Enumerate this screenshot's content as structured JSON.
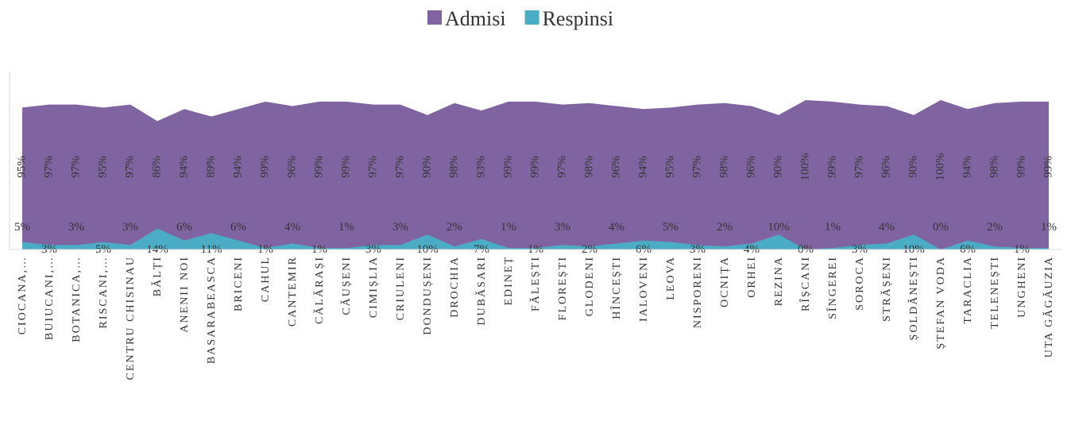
{
  "chart_data": {
    "type": "area",
    "categories": [
      "CIOCANA,…",
      "BUIUCANI,…",
      "BOTANICA,…",
      "RISCANI,…",
      "CENTRU CHISINAU",
      "BĂLȚI",
      "ANENII NOI",
      "BASARABEASCA",
      "BRICENI",
      "CAHUL",
      "CANTEMIR",
      "CĂLĂRAȘI",
      "CĂUȘENI",
      "CIMIȘLIA",
      "CRIULENI",
      "DONDUȘENI",
      "DROCHIA",
      "DUBĂSARI",
      "EDINEȚ",
      "FĂLEȘTI",
      "FLOREȘTI",
      "GLODENI",
      "HÎNCEȘTI",
      "IALOVENI",
      "LEOVA",
      "NISPORENI",
      "OCNIȚA",
      "ORHEI",
      "REZINA",
      "RÎȘCANI",
      "SÎNGEREI",
      "SOROCA",
      "STRĂȘENI",
      "ȘOLDĂNEȘTI",
      "ȘTEFAN VODA",
      "TARACLIA",
      "TELENEȘTI",
      "UNGHENI",
      "UTA GĂGĂUZIA"
    ],
    "series": [
      {
        "name": "Admisi",
        "color": "#8064a2",
        "values": [
          95,
          97,
          97,
          95,
          97,
          86,
          94,
          89,
          94,
          99,
          96,
          99,
          99,
          97,
          97,
          90,
          98,
          93,
          99,
          99,
          97,
          98,
          96,
          94,
          95,
          97,
          98,
          96,
          90,
          100,
          99,
          97,
          96,
          90,
          100,
          94,
          98,
          99,
          99
        ],
        "value_labels": [
          "95%",
          "97%",
          "97%",
          "95%",
          "97%",
          "86%",
          "94%",
          "89%",
          "94%",
          "99%",
          "96%",
          "99%",
          "99%",
          "97%",
          "97%",
          "90%",
          "98%",
          "93%",
          "99%",
          "99%",
          "97%",
          "98%",
          "96%",
          "94%",
          "95%",
          "97%",
          "98%",
          "96%",
          "90%",
          "100%",
          "99%",
          "97%",
          "96%",
          "90%",
          "100%",
          "94%",
          "98%",
          "99%",
          "99%"
        ]
      },
      {
        "name": "Respinsi",
        "color": "#4bacc6",
        "values": [
          5,
          3,
          3,
          5,
          3,
          14,
          6,
          11,
          6,
          1,
          4,
          1,
          1,
          3,
          3,
          10,
          2,
          7,
          1,
          1,
          3,
          2,
          4,
          6,
          5,
          3,
          2,
          4,
          10,
          0,
          1,
          3,
          4,
          10,
          0,
          6,
          2,
          1,
          1
        ],
        "value_labels": [
          "5%",
          "3%",
          "3%",
          "5%",
          "3%",
          "14%",
          "6%",
          "11%",
          "6%",
          "1%",
          "4%",
          "1%",
          "1%",
          "3%",
          "3%",
          "10%",
          "2%",
          "7%",
          "1%",
          "1%",
          "3%",
          "2%",
          "4%",
          "6%",
          "5%",
          "3%",
          "2%",
          "4%",
          "10%",
          "0%",
          "1%",
          "3%",
          "4%",
          "10%",
          "0%",
          "6%",
          "2%",
          "1%",
          "1%"
        ]
      }
    ],
    "ylim": [
      0,
      100
    ],
    "legend": "top"
  }
}
